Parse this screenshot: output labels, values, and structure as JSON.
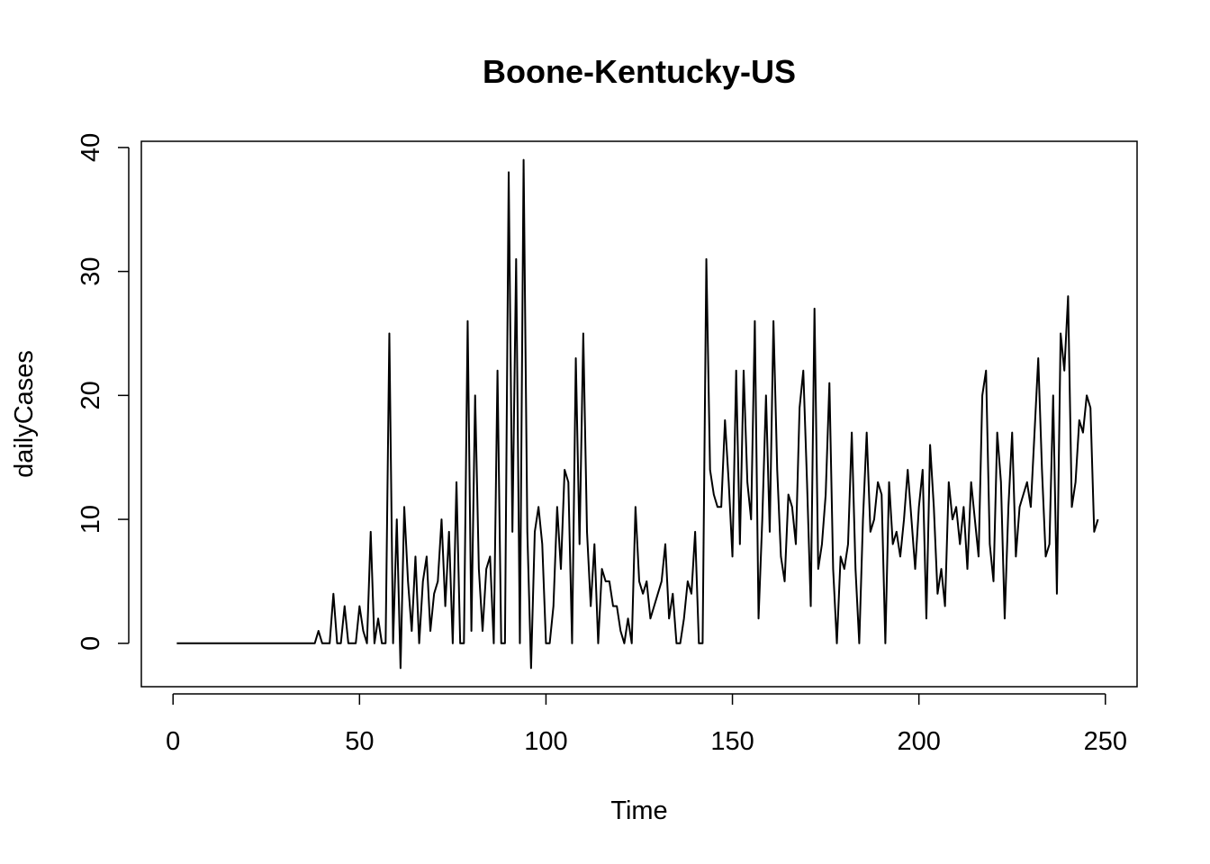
{
  "chart_data": {
    "type": "line",
    "title": "Boone-Kentucky-US",
    "xlabel": "Time",
    "ylabel": "dailyCases",
    "xlim": [
      -8.5,
      258.5
    ],
    "ylim": [
      -3.5,
      40.5
    ],
    "xticks": [
      0,
      50,
      100,
      150,
      200,
      250
    ],
    "yticks": [
      0,
      10,
      20,
      30,
      40
    ],
    "grid": false,
    "legend": "none",
    "line_color": "#000000",
    "series": [
      {
        "x_start": 1,
        "values": [
          0,
          0,
          0,
          0,
          0,
          0,
          0,
          0,
          0,
          0,
          0,
          0,
          0,
          0,
          0,
          0,
          0,
          0,
          0,
          0,
          0,
          0,
          0,
          0,
          0,
          0,
          0,
          0,
          0,
          0,
          0,
          0,
          0,
          0,
          0,
          0,
          0,
          0,
          1,
          0,
          0,
          0,
          4,
          0,
          0,
          3,
          0,
          0,
          0,
          3,
          1,
          0,
          9,
          0,
          2,
          0,
          0,
          25,
          0,
          10,
          -2,
          11,
          5,
          1,
          7,
          0,
          5,
          7,
          1,
          4,
          5,
          10,
          3,
          9,
          0,
          13,
          0,
          0,
          26,
          1,
          20,
          6,
          1,
          6,
          7,
          0,
          22,
          0,
          0,
          38,
          9,
          31,
          0,
          39,
          9,
          -2,
          9,
          11,
          8,
          0,
          0,
          3,
          11,
          6,
          14,
          13,
          0,
          23,
          8,
          25,
          9,
          3,
          8,
          0,
          6,
          5,
          5,
          3,
          3,
          1,
          0,
          2,
          0,
          11,
          5,
          4,
          5,
          2,
          3,
          4,
          5,
          8,
          2,
          4,
          0,
          0,
          2,
          5,
          4,
          9,
          0,
          0,
          31,
          14,
          12,
          11,
          11,
          18,
          13,
          7,
          22,
          8,
          22,
          13,
          10,
          26,
          2,
          10,
          20,
          9,
          26,
          14,
          7,
          5,
          12,
          11,
          8,
          19,
          22,
          13,
          3,
          27,
          6,
          8,
          12,
          21,
          6,
          0,
          7,
          6,
          8,
          17,
          6,
          0,
          10,
          17,
          9,
          10,
          13,
          12,
          0,
          13,
          8,
          9,
          7,
          10,
          14,
          10,
          6,
          11,
          14,
          2,
          16,
          11,
          4,
          6,
          3,
          13,
          10,
          11,
          8,
          11,
          6,
          13,
          10,
          7,
          20,
          22,
          8,
          5,
          17,
          13,
          2,
          11,
          17,
          7,
          11,
          12,
          13,
          11,
          17,
          23,
          14,
          7,
          8,
          20,
          4,
          25,
          22,
          28,
          11,
          13,
          18,
          17,
          20,
          19,
          9,
          10
        ]
      }
    ]
  }
}
